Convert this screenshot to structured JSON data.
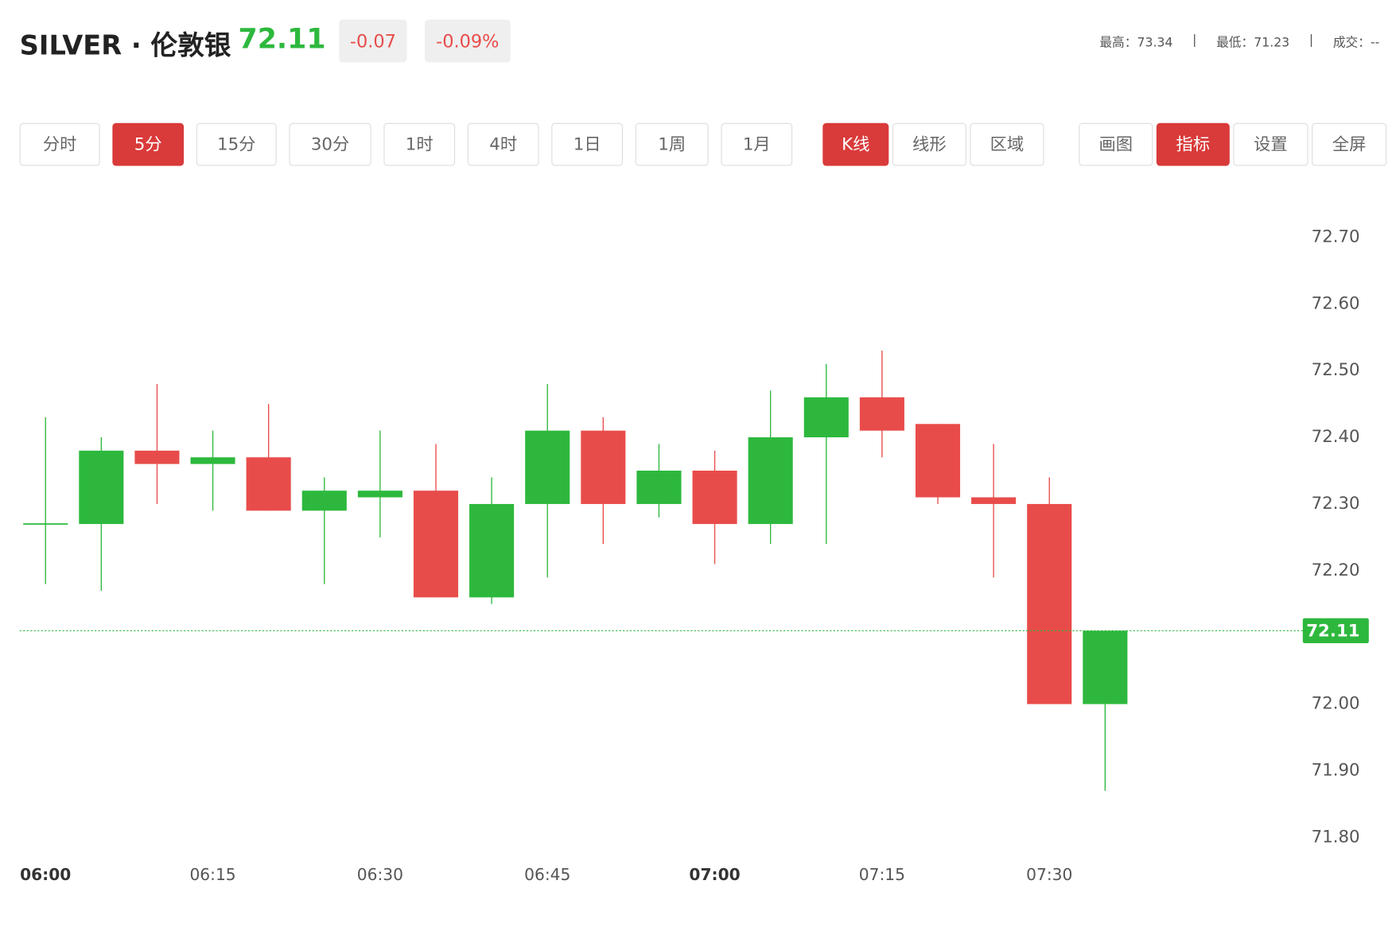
{
  "header": {
    "symbol": "SILVER · 伦敦银",
    "price": "72.11",
    "change": "-0.07",
    "change_pct": "-0.09%",
    "stats": [
      "最高：73.34",
      "最低：71.23",
      "成交：--"
    ]
  },
  "toolbar": {
    "groups": [
      [
        {
          "label": "分时",
          "active": false
        },
        {
          "label": "5分",
          "active": true
        },
        {
          "label": "15分",
          "active": false
        },
        {
          "label": "30分",
          "active": false
        },
        {
          "label": "1时",
          "active": false
        },
        {
          "label": "4时",
          "active": false
        },
        {
          "label": "1日",
          "active": false
        },
        {
          "label": "1周",
          "active": false
        },
        {
          "label": "1月",
          "active": false
        }
      ],
      [
        {
          "label": "K线",
          "active": true
        },
        {
          "label": "线形",
          "active": false
        },
        {
          "label": "区域",
          "active": false
        }
      ],
      [
        {
          "label": "画图",
          "active": false
        },
        {
          "label": "指标",
          "active": true
        },
        {
          "label": "设置",
          "active": false
        },
        {
          "label": "全屏",
          "active": false
        }
      ]
    ]
  },
  "chart_data": {
    "type": "candlestick",
    "categories": [
      "06:00",
      null,
      null,
      "06:15",
      null,
      null,
      "06:30",
      null,
      null,
      "06:45",
      null,
      null,
      "07:00",
      null,
      null,
      "07:15",
      null,
      null,
      "07:30",
      null
    ],
    "open": [
      72.27,
      72.27,
      72.38,
      72.36,
      72.37,
      72.29,
      72.31,
      72.32,
      72.16,
      72.3,
      72.41,
      72.3,
      72.35,
      72.27,
      72.4,
      72.46,
      72.42,
      72.31,
      72.3,
      72.0
    ],
    "high": [
      72.43,
      72.4,
      72.48,
      72.41,
      72.45,
      72.34,
      72.41,
      72.39,
      72.34,
      72.48,
      72.43,
      72.39,
      72.38,
      72.47,
      72.51,
      72.53,
      72.42,
      72.39,
      72.34,
      72.11
    ],
    "low": [
      72.18,
      72.17,
      72.3,
      72.29,
      72.29,
      72.18,
      72.25,
      72.16,
      72.15,
      72.19,
      72.24,
      72.28,
      72.21,
      72.24,
      72.24,
      72.37,
      72.3,
      72.19,
      72.0,
      71.87
    ],
    "close": [
      72.27,
      72.38,
      72.36,
      72.37,
      72.29,
      72.32,
      72.32,
      72.16,
      72.3,
      72.41,
      72.3,
      72.35,
      72.27,
      72.4,
      72.46,
      72.41,
      72.31,
      72.3,
      72.0,
      72.11
    ],
    "up_color": "#2db83d",
    "down_color": "#e84c4a",
    "ylim": [
      71.8,
      72.7
    ],
    "yticks": [
      {
        "value": 72.7,
        "label": "72.70"
      },
      {
        "value": 72.6,
        "label": "72.60"
      },
      {
        "value": 72.5,
        "label": "72.50"
      },
      {
        "value": 72.4,
        "label": "72.40"
      },
      {
        "value": 72.3,
        "label": "72.30"
      },
      {
        "value": 72.2,
        "label": "72.20"
      },
      {
        "value": 72.0,
        "label": "72.00"
      },
      {
        "value": 71.9,
        "label": "71.90"
      },
      {
        "value": 71.8,
        "label": "71.80"
      }
    ],
    "last_price": {
      "value": 72.11,
      "label": "72.11",
      "color": "#2db83d"
    }
  }
}
